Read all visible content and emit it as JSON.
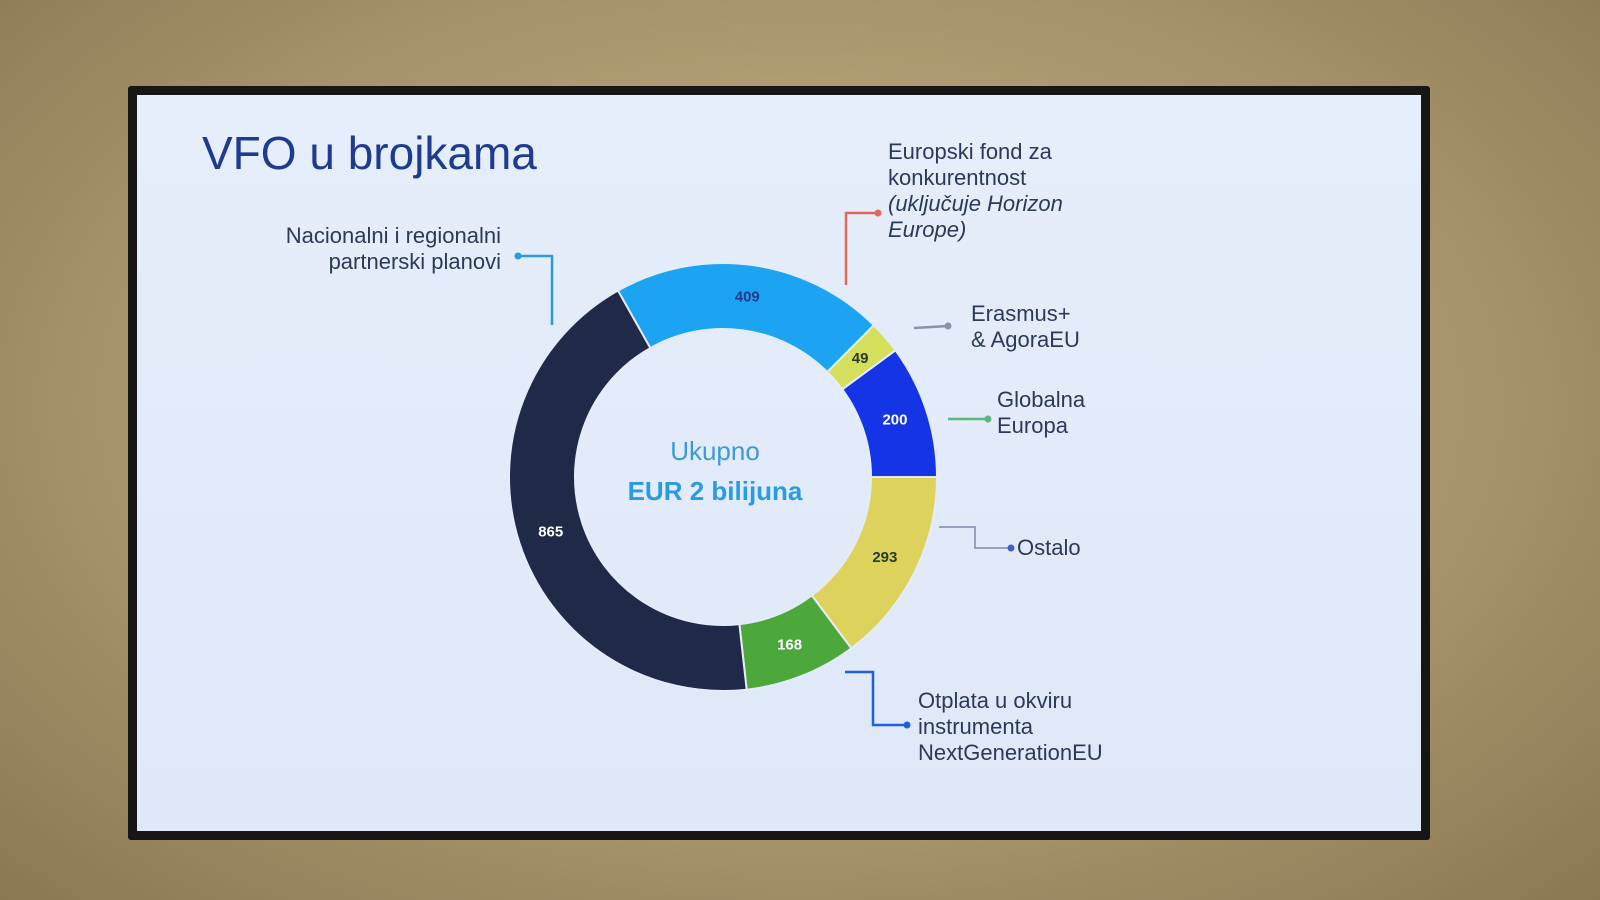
{
  "chart_data": {
    "type": "pie",
    "title": "VFO u brojkama",
    "center_label": "Ukupno",
    "center_value": "EUR 2 bilijuna",
    "categories": [
      "Europski fond za konkurentnost",
      "Erasmus+ & AgoraEU",
      "Globalna Europa",
      "Ostalo",
      "Otplata u okviru instrumenta NextGenerationEU",
      "Nacionalni i regionalni partnerski planovi"
    ],
    "category_notes": [
      "(uključuje Horizon Europe)",
      null,
      null,
      null,
      null,
      null
    ],
    "values": [
      409,
      49,
      200,
      293,
      168,
      865
    ],
    "colors": [
      "#1ca3f2",
      "#d4df5c",
      "#1434e6",
      "#ddd35c",
      "#4da83c",
      "#1f2a48"
    ]
  }
}
